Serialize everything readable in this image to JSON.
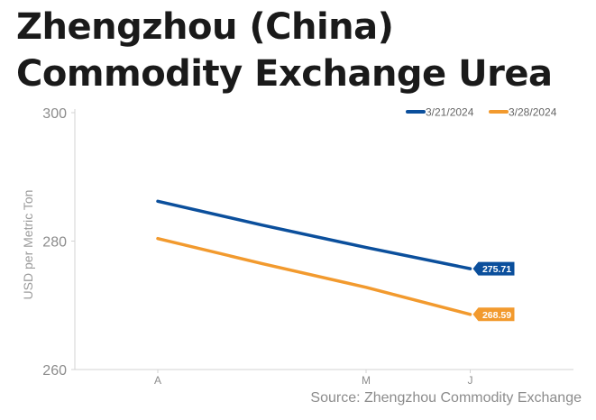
{
  "chart_data": {
    "type": "line",
    "title": "Zhengzhou (China) Commodity Exchange Urea",
    "ylabel": "USD per Metric Ton",
    "xlabel": "",
    "ylim": [
      260,
      300
    ],
    "yticks": [
      260,
      280,
      300
    ],
    "grid": false,
    "legend": "top-right",
    "categories": [
      "A",
      "M",
      "J"
    ],
    "x": [
      0,
      1,
      2,
      3,
      4
    ],
    "xtick_positions": [
      0,
      2,
      3
    ],
    "series": [
      {
        "name": "3/21/2024",
        "color": "#0b4f9c",
        "values": [
          286.2,
          282.5,
          279.0,
          275.71
        ],
        "x": [
          0,
          1,
          2,
          3
        ],
        "end_label": "275.71"
      },
      {
        "name": "3/28/2024",
        "color": "#f29a2e",
        "values": [
          280.4,
          276.5,
          272.8,
          268.59
        ],
        "x": [
          0,
          1,
          2,
          3
        ],
        "end_label": "268.59"
      }
    ],
    "source": "Source: Zhengzhou Commodity Exchange"
  }
}
